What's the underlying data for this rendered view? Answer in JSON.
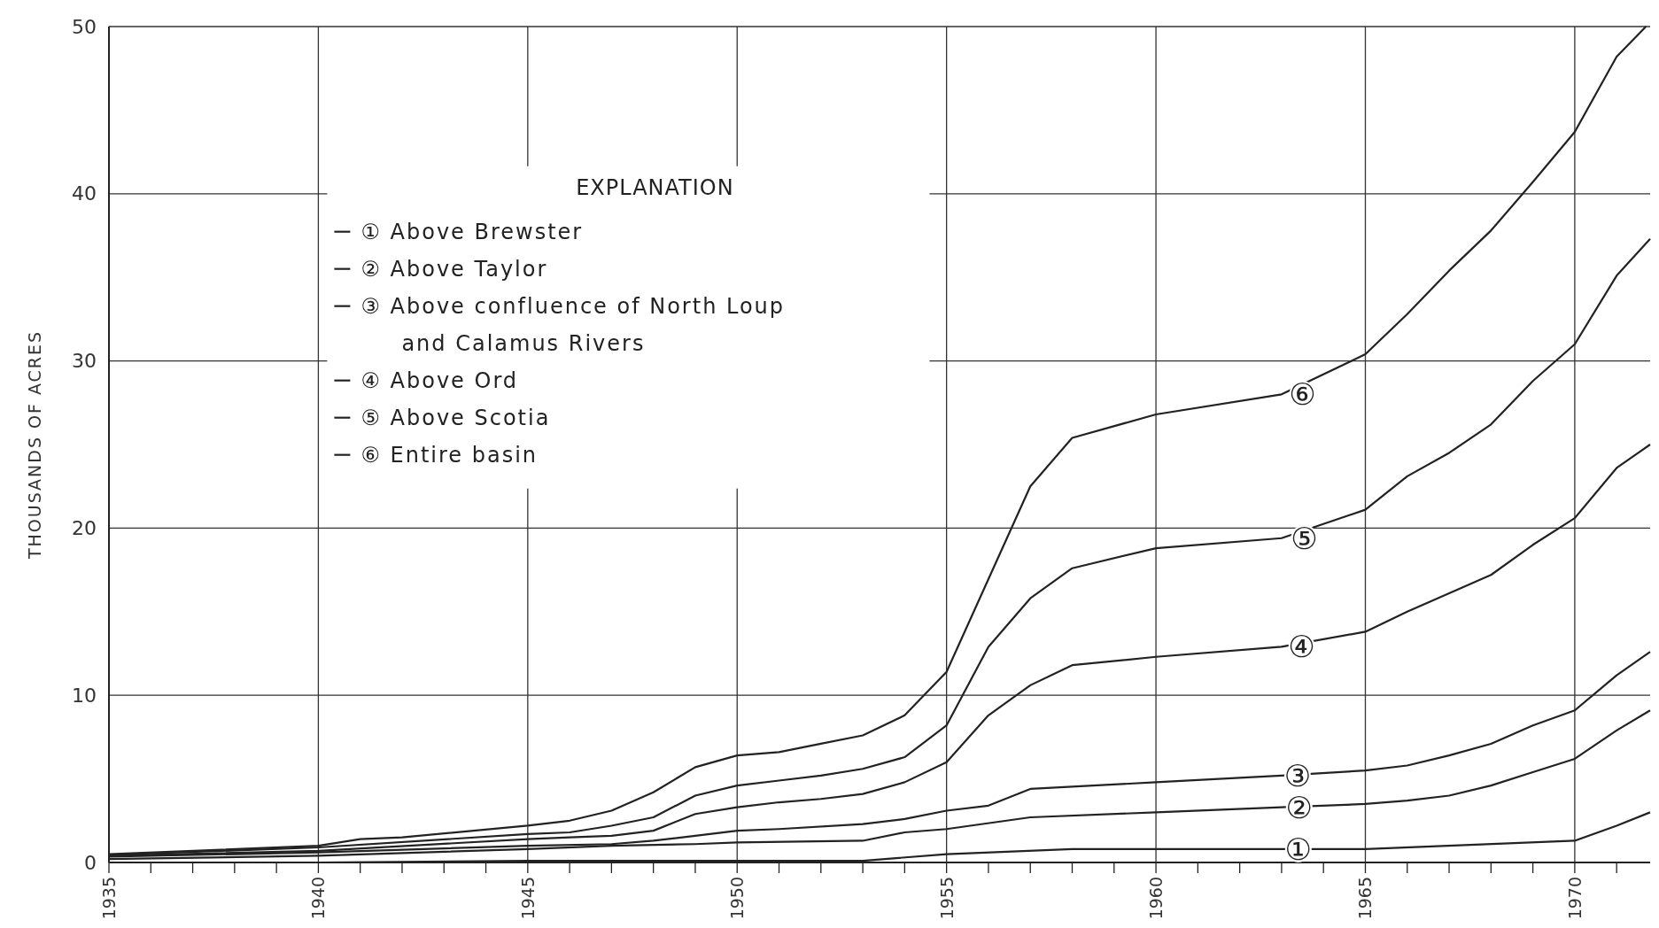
{
  "chart_data": {
    "type": "line",
    "ylabel": "THOUSANDS OF ACRES",
    "legend_title": "EXPLANATION",
    "legend": "top left",
    "grid": true,
    "xlim": [
      1935,
      1971.8
    ],
    "ylim": [
      0,
      50
    ],
    "yticks": [
      0,
      10,
      20,
      30,
      40,
      50
    ],
    "xticks": [
      1935,
      {
        "value": 1936,
        "label": null
      },
      {
        "value": 1937,
        "label": null
      },
      {
        "value": 1938,
        "label": null
      },
      {
        "value": 1939,
        "label": null
      },
      1940,
      {
        "value": 1941,
        "label": null
      },
      {
        "value": 1942,
        "label": null
      },
      {
        "value": 1943,
        "label": null
      },
      {
        "value": 1944,
        "label": null
      },
      1945,
      {
        "value": 1946,
        "label": null
      },
      {
        "value": 1947,
        "label": null
      },
      {
        "value": 1948,
        "label": null
      },
      {
        "value": 1949,
        "label": null
      },
      1950,
      {
        "value": 1951,
        "label": null
      },
      {
        "value": 1952,
        "label": null
      },
      {
        "value": 1953,
        "label": null
      },
      {
        "value": 1954,
        "label": null
      },
      1955,
      {
        "value": 1956,
        "label": null
      },
      {
        "value": 1957,
        "label": null
      },
      {
        "value": 1958,
        "label": null
      },
      {
        "value": 1959,
        "label": null
      },
      1960,
      {
        "value": 1961,
        "label": null
      },
      {
        "value": 1962,
        "label": null
      },
      {
        "value": 1963,
        "label": null
      },
      {
        "value": 1964,
        "label": null
      },
      1965,
      {
        "value": 1966,
        "label": null
      },
      {
        "value": 1967,
        "label": null
      },
      {
        "value": 1968,
        "label": null
      },
      {
        "value": 1969,
        "label": null
      },
      1970,
      {
        "value": 1971,
        "label": null
      }
    ],
    "series": [
      {
        "name": "①  Above Brewster",
        "color": "#222222",
        "x": [
          1935,
          1940,
          1945,
          1950,
          1953,
          1955,
          1958,
          1963,
          1965,
          1970,
          1971,
          1971.8
        ],
        "values": [
          0,
          0,
          0.1,
          0.1,
          0.1,
          0.5,
          0.8,
          0.8,
          0.8,
          1.3,
          2.2,
          3.0
        ]
      },
      {
        "name": "②  Above Taylor",
        "color": "#222222",
        "x": [
          1935,
          1940,
          1945,
          1947,
          1949,
          1950,
          1953,
          1954,
          1955,
          1957,
          1960,
          1963,
          1965,
          1966,
          1967,
          1968,
          1969,
          1970,
          1971,
          1971.8
        ],
        "values": [
          0.2,
          0.4,
          0.8,
          1.0,
          1.1,
          1.2,
          1.3,
          1.8,
          2.0,
          2.7,
          3.0,
          3.3,
          3.5,
          3.7,
          4.0,
          4.6,
          5.4,
          6.2,
          7.9,
          9.1
        ]
      },
      {
        "name": "③  Above confluence of North Loup and Calamus Rivers",
        "color": "#222222",
        "x": [
          1935,
          1940,
          1945,
          1947,
          1948,
          1949,
          1950,
          1951,
          1953,
          1954,
          1955,
          1956,
          1957,
          1960,
          1963,
          1965,
          1966,
          1967,
          1968,
          1969,
          1970,
          1971,
          1971.8
        ],
        "values": [
          0.35,
          0.6,
          1.0,
          1.1,
          1.3,
          1.6,
          1.9,
          2.0,
          2.3,
          2.6,
          3.1,
          3.4,
          4.4,
          4.8,
          5.2,
          5.5,
          5.8,
          6.4,
          7.1,
          8.2,
          9.1,
          11.2,
          12.6
        ]
      },
      {
        "name": "④  Above Ord",
        "color": "#222222",
        "x": [
          1935,
          1940,
          1945,
          1946,
          1947,
          1948,
          1949,
          1950,
          1951,
          1952,
          1953,
          1954,
          1955,
          1956,
          1957,
          1958,
          1960,
          1963,
          1965,
          1966,
          1967,
          1968,
          1969,
          1970,
          1971,
          1971.8
        ],
        "values": [
          0.4,
          0.7,
          1.4,
          1.5,
          1.6,
          1.9,
          2.9,
          3.3,
          3.6,
          3.8,
          4.1,
          4.8,
          6.0,
          8.8,
          10.6,
          11.8,
          12.3,
          12.9,
          13.8,
          15.0,
          16.1,
          17.2,
          19.0,
          20.6,
          23.6,
          25.0
        ]
      },
      {
        "name": "⑤  Above Scotia",
        "color": "#222222",
        "x": [
          1935,
          1940,
          1945,
          1946,
          1947,
          1948,
          1949,
          1950,
          1951,
          1952,
          1953,
          1954,
          1955,
          1956,
          1957,
          1958,
          1960,
          1963,
          1965,
          1966,
          1967,
          1968,
          1969,
          1970,
          1971,
          1971.8
        ],
        "values": [
          0.45,
          0.9,
          1.7,
          1.8,
          2.2,
          2.7,
          4.0,
          4.6,
          4.9,
          5.2,
          5.6,
          6.3,
          8.2,
          12.9,
          15.8,
          17.6,
          18.8,
          19.4,
          21.1,
          23.1,
          24.5,
          26.2,
          28.8,
          31.0,
          35.1,
          37.3
        ]
      },
      {
        "name": "⑥  Entire basin",
        "color": "#222222",
        "x": [
          1935,
          1940,
          1941,
          1942,
          1945,
          1946,
          1947,
          1948,
          1949,
          1950,
          1951,
          1952,
          1953,
          1954,
          1955,
          1957,
          1958,
          1960,
          1963,
          1965,
          1966,
          1967,
          1968,
          1969,
          1970,
          1971,
          1971.7
        ],
        "values": [
          0.5,
          1.0,
          1.4,
          1.5,
          2.2,
          2.5,
          3.1,
          4.2,
          5.7,
          6.4,
          6.6,
          7.1,
          7.6,
          8.8,
          11.4,
          22.5,
          25.4,
          26.8,
          28.0,
          30.4,
          32.8,
          35.4,
          37.8,
          40.7,
          43.7,
          48.2,
          50
        ]
      }
    ],
    "annotations": [
      {
        "text": "①",
        "x": 1963.4,
        "y": 0.8
      },
      {
        "text": "②",
        "x": 1963.42,
        "y": 3.3
      },
      {
        "text": "③",
        "x": 1963.38,
        "y": 5.2
      },
      {
        "text": "④",
        "x": 1963.48,
        "y": 12.9
      },
      {
        "text": "⑤",
        "x": 1963.54,
        "y": 19.4
      },
      {
        "text": "⑥",
        "x": 1963.5,
        "y": 28.0
      }
    ]
  }
}
